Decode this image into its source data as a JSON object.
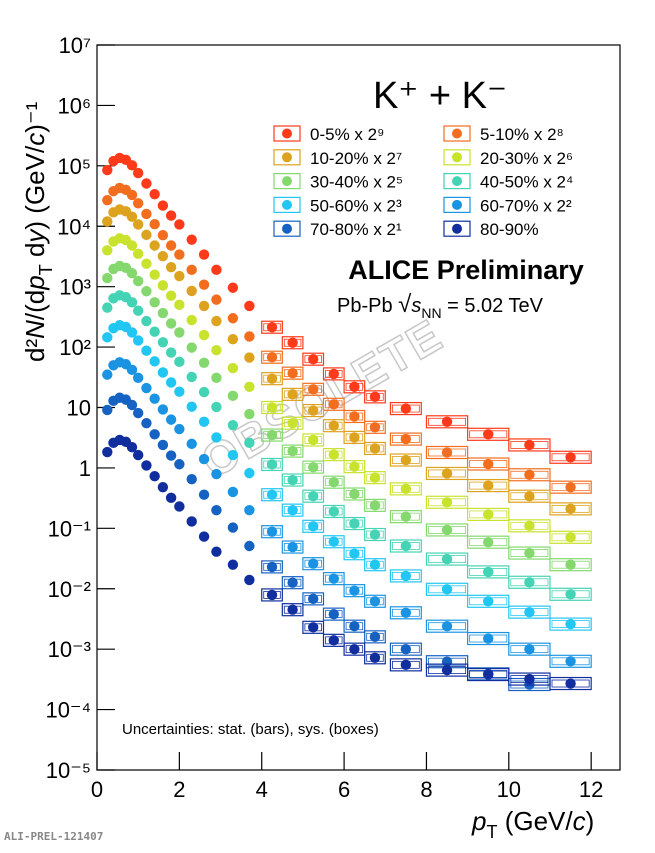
{
  "chart_data": {
    "type": "scatter",
    "title": "K⁺ + K⁻",
    "collaboration": "ALICE Preliminary",
    "system": [
      "Pb-Pb ",
      "√",
      "s",
      "NN",
      " = 5.02 TeV"
    ],
    "note": "Uncertainties: stat. (bars), sys. (boxes)",
    "figure_id": "ALI-PREL-121407",
    "watermark": "OBSOLETE",
    "x_label": [
      "p",
      "T",
      " (GeV/",
      "c",
      ")"
    ],
    "y_label": [
      "d²",
      "N",
      "/(d",
      "p",
      "T",
      " d",
      "y",
      ") (GeV/",
      "c",
      ")⁻¹"
    ],
    "log_y": true,
    "xlim": [
      0,
      12.7
    ],
    "ylim": [
      1e-05,
      10000000
    ],
    "xticks": [
      0,
      2,
      4,
      6,
      8,
      10,
      12
    ],
    "yticks": [
      {
        "value": 1e-05,
        "label": "10⁻⁵"
      },
      {
        "value": 0.0001,
        "label": "10⁻⁴"
      },
      {
        "value": 0.001,
        "label": "10⁻³"
      },
      {
        "value": 0.01,
        "label": "10⁻²"
      },
      {
        "value": 0.1,
        "label": "10⁻¹"
      },
      1,
      10,
      {
        "value": 100,
        "label": "10²"
      },
      {
        "value": 1000,
        "label": "10³"
      },
      {
        "value": 10000,
        "label": "10⁴"
      },
      {
        "value": 100000,
        "label": "10⁵"
      },
      {
        "value": 1000000,
        "label": "10⁶"
      },
      {
        "value": 10000000,
        "label": "10⁷"
      }
    ],
    "x": [
      0.25,
      0.4,
      0.55,
      0.7,
      0.85,
      1.0,
      1.2,
      1.4,
      1.6,
      1.8,
      2.0,
      2.3,
      2.6,
      2.9,
      3.3,
      3.7,
      4.25,
      4.75,
      5.25,
      5.75,
      6.25,
      6.75,
      7.5,
      8.5,
      9.5,
      10.5,
      11.5
    ],
    "series": [
      {
        "name": "0-5% x 2⁹",
        "color": "#ff3a1a",
        "values": [
          85000,
          120000,
          135000,
          126000,
          102000,
          76000,
          51000,
          34000,
          22000,
          15000,
          10700,
          6000,
          3400,
          1900,
          960,
          480,
          213,
          118,
          63,
          36,
          22,
          15,
          9.6,
          5.8,
          3.6,
          2.4,
          1.5
        ]
      },
      {
        "name": "5-10% x 2⁸",
        "color": "#f26d1e",
        "values": [
          27000,
          38000,
          43000,
          40000,
          33000,
          24000,
          16000,
          10800,
          7100,
          4800,
          3400,
          1900,
          1080,
          610,
          300,
          150,
          68,
          37,
          20,
          11.3,
          7.1,
          4.7,
          3.0,
          1.8,
          1.16,
          0.77,
          0.48
        ]
      },
      {
        "name": "10-20% x 2⁷",
        "color": "#dda21e",
        "values": [
          12000,
          17000,
          19000,
          17700,
          14400,
          10700,
          7200,
          4800,
          3200,
          2100,
          1500,
          850,
          480,
          270,
          135,
          67,
          30,
          16.5,
          8.9,
          5.0,
          3.2,
          2.1,
          1.35,
          0.81,
          0.51,
          0.34,
          0.21
        ]
      },
      {
        "name": "20-30% x 2⁶",
        "color": "#c9e22e",
        "values": [
          4000,
          5600,
          6300,
          5900,
          4800,
          3500,
          2400,
          1580,
          1050,
          710,
          500,
          280,
          158,
          89,
          45,
          22,
          10,
          5.5,
          2.9,
          1.66,
          1.05,
          0.69,
          0.45,
          0.27,
          0.17,
          0.11,
          0.071
        ]
      },
      {
        "name": "30-40% x 2⁵",
        "color": "#84d86e",
        "values": [
          1390,
          1960,
          2200,
          2050,
          1670,
          1240,
          840,
          550,
          365,
          246,
          175,
          98,
          55,
          31,
          15.6,
          7.8,
          3.5,
          1.9,
          1.03,
          0.58,
          0.37,
          0.24,
          0.156,
          0.094,
          0.059,
          0.039,
          0.025
        ]
      },
      {
        "name": "40-50% x 2⁴",
        "color": "#44d3b4",
        "values": [
          450,
          640,
          720,
          670,
          550,
          400,
          270,
          180,
          120,
          81,
          57,
          32,
          18,
          10.2,
          5.1,
          2.6,
          1.14,
          0.63,
          0.34,
          0.19,
          0.12,
          0.079,
          0.051,
          0.031,
          0.019,
          0.0128,
          0.0081
        ]
      },
      {
        "name": "50-60% x 2³",
        "color": "#22c6f2",
        "values": [
          145,
          205,
          230,
          215,
          175,
          129,
          87,
          58,
          38,
          26,
          18.3,
          10.3,
          5.8,
          3.2,
          1.63,
          0.82,
          0.36,
          0.2,
          0.108,
          0.06,
          0.038,
          0.025,
          0.0163,
          0.0098,
          0.0062,
          0.0041,
          0.0026
        ]
      },
      {
        "name": "60-70% x 2²",
        "color": "#1a94e2",
        "values": [
          35,
          50,
          56,
          52,
          42,
          31,
          21,
          14,
          9.3,
          6.3,
          4.4,
          2.5,
          1.4,
          0.79,
          0.4,
          0.2,
          0.088,
          0.049,
          0.026,
          0.0147,
          0.0093,
          0.0062,
          0.004,
          0.0024,
          0.0015,
          0.001,
          0.00063
        ]
      },
      {
        "name": "70-80% x 2¹",
        "color": "#1662c2",
        "values": [
          9.1,
          12.9,
          14.5,
          13.5,
          11,
          8.1,
          5.5,
          3.6,
          2.4,
          1.6,
          1.15,
          0.65,
          0.36,
          0.2,
          0.103,
          0.051,
          0.023,
          0.0126,
          0.0068,
          0.0038,
          0.0024,
          0.0016,
          0.001,
          0.00062,
          0.00039,
          0.00026,
          null
        ]
      },
      {
        "name": "80-90%",
        "color": "#102e9e",
        "values": [
          1.83,
          2.6,
          2.9,
          2.7,
          2.2,
          1.63,
          1.1,
          0.73,
          0.48,
          0.32,
          0.23,
          0.13,
          0.073,
          0.041,
          0.025,
          0.014,
          0.0079,
          0.0045,
          0.0023,
          0.0014,
          0.001,
          0.00072,
          0.00055,
          0.00045,
          0.00038,
          0.00032,
          0.00027
        ]
      }
    ]
  }
}
